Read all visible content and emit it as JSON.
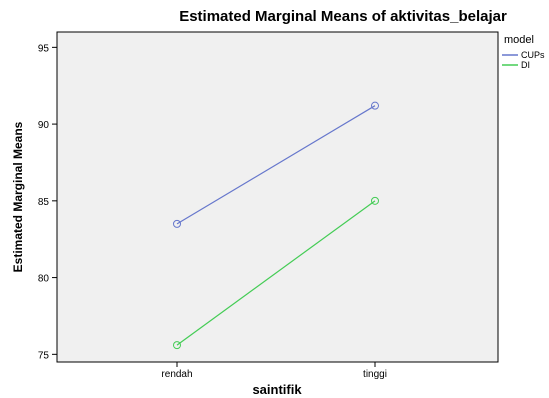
{
  "chart_data": {
    "type": "line",
    "title": "Estimated Marginal Means of aktivitas_belajar",
    "xlabel": "saintifik",
    "ylabel": "Estimated Marginal Means",
    "categories": [
      "rendah",
      "tinggi"
    ],
    "ylim": [
      74.5,
      96
    ],
    "yticks": [
      75,
      80,
      85,
      90,
      95
    ],
    "grid": false,
    "legend": {
      "title": "model",
      "placement": "right"
    },
    "series": [
      {
        "name": "CUPs",
        "values": [
          83.5,
          91.2
        ],
        "color": "#6677cc"
      },
      {
        "name": "DI",
        "values": [
          75.6,
          85.0
        ],
        "color": "#44cc55"
      }
    ]
  }
}
